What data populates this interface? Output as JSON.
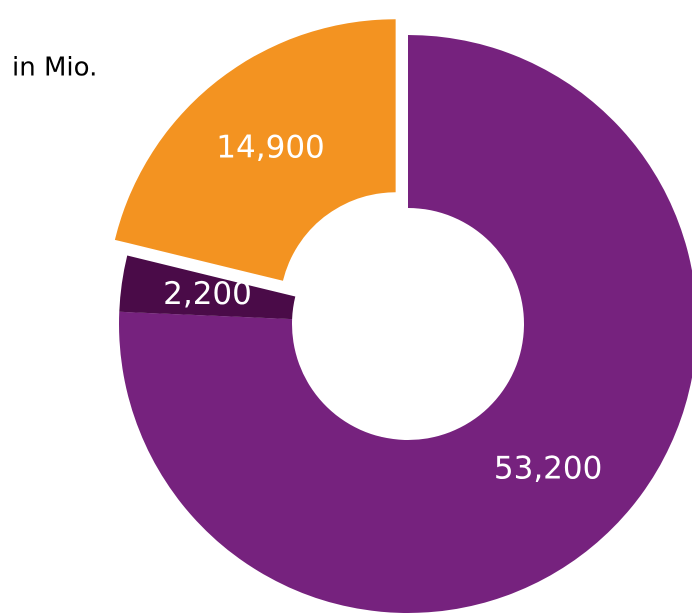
{
  "chart_data": {
    "type": "donut",
    "subtitle": "in Mio.",
    "categories": [
      null,
      null,
      null
    ],
    "values": [
      53200,
      2200,
      14900
    ],
    "value_labels": [
      "53,200",
      "2,200",
      "14,900"
    ],
    "colors": [
      "#76227e",
      "#4a0b48",
      "#f39321"
    ]
  }
}
